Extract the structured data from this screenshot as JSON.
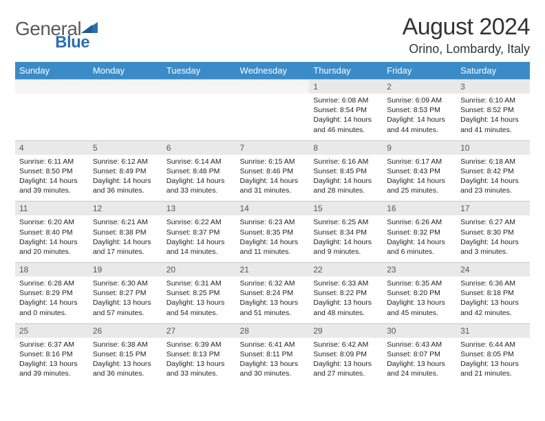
{
  "logo": {
    "text1": "General",
    "text2": "Blue"
  },
  "title": "August 2024",
  "location": "Orino, Lombardy, Italy",
  "styling": {
    "header_bg": "#3b8bc8",
    "header_fg": "#ffffff",
    "daynum_bg": "#e9e9e9",
    "daynum_fg": "#555555",
    "border_color": "#c9c9c9",
    "body_fg": "#222222",
    "logo_gray": "#5a5a5a",
    "logo_blue": "#2b6fb0",
    "title_fontsize": 34,
    "location_fontsize": 18,
    "dayhead_fontsize": 13,
    "daynum_fontsize": 12,
    "detail_fontsize": 10.5
  },
  "weekdays": [
    "Sunday",
    "Monday",
    "Tuesday",
    "Wednesday",
    "Thursday",
    "Friday",
    "Saturday"
  ],
  "weeks": [
    {
      "nums": [
        "",
        "",
        "",
        "",
        "1",
        "2",
        "3"
      ],
      "cells": [
        null,
        null,
        null,
        null,
        {
          "sunrise": "6:08 AM",
          "sunset": "8:54 PM",
          "dayh": 14,
          "daym": 46
        },
        {
          "sunrise": "6:09 AM",
          "sunset": "8:53 PM",
          "dayh": 14,
          "daym": 44
        },
        {
          "sunrise": "6:10 AM",
          "sunset": "8:52 PM",
          "dayh": 14,
          "daym": 41
        }
      ]
    },
    {
      "nums": [
        "4",
        "5",
        "6",
        "7",
        "8",
        "9",
        "10"
      ],
      "cells": [
        {
          "sunrise": "6:11 AM",
          "sunset": "8:50 PM",
          "dayh": 14,
          "daym": 39
        },
        {
          "sunrise": "6:12 AM",
          "sunset": "8:49 PM",
          "dayh": 14,
          "daym": 36
        },
        {
          "sunrise": "6:14 AM",
          "sunset": "8:48 PM",
          "dayh": 14,
          "daym": 33
        },
        {
          "sunrise": "6:15 AM",
          "sunset": "8:46 PM",
          "dayh": 14,
          "daym": 31
        },
        {
          "sunrise": "6:16 AM",
          "sunset": "8:45 PM",
          "dayh": 14,
          "daym": 28
        },
        {
          "sunrise": "6:17 AM",
          "sunset": "8:43 PM",
          "dayh": 14,
          "daym": 25
        },
        {
          "sunrise": "6:18 AM",
          "sunset": "8:42 PM",
          "dayh": 14,
          "daym": 23
        }
      ]
    },
    {
      "nums": [
        "11",
        "12",
        "13",
        "14",
        "15",
        "16",
        "17"
      ],
      "cells": [
        {
          "sunrise": "6:20 AM",
          "sunset": "8:40 PM",
          "dayh": 14,
          "daym": 20
        },
        {
          "sunrise": "6:21 AM",
          "sunset": "8:38 PM",
          "dayh": 14,
          "daym": 17
        },
        {
          "sunrise": "6:22 AM",
          "sunset": "8:37 PM",
          "dayh": 14,
          "daym": 14
        },
        {
          "sunrise": "6:23 AM",
          "sunset": "8:35 PM",
          "dayh": 14,
          "daym": 11
        },
        {
          "sunrise": "6:25 AM",
          "sunset": "8:34 PM",
          "dayh": 14,
          "daym": 9
        },
        {
          "sunrise": "6:26 AM",
          "sunset": "8:32 PM",
          "dayh": 14,
          "daym": 6
        },
        {
          "sunrise": "6:27 AM",
          "sunset": "8:30 PM",
          "dayh": 14,
          "daym": 3
        }
      ]
    },
    {
      "nums": [
        "18",
        "19",
        "20",
        "21",
        "22",
        "23",
        "24"
      ],
      "cells": [
        {
          "sunrise": "6:28 AM",
          "sunset": "8:29 PM",
          "dayh": 14,
          "daym": 0
        },
        {
          "sunrise": "6:30 AM",
          "sunset": "8:27 PM",
          "dayh": 13,
          "daym": 57
        },
        {
          "sunrise": "6:31 AM",
          "sunset": "8:25 PM",
          "dayh": 13,
          "daym": 54
        },
        {
          "sunrise": "6:32 AM",
          "sunset": "8:24 PM",
          "dayh": 13,
          "daym": 51
        },
        {
          "sunrise": "6:33 AM",
          "sunset": "8:22 PM",
          "dayh": 13,
          "daym": 48
        },
        {
          "sunrise": "6:35 AM",
          "sunset": "8:20 PM",
          "dayh": 13,
          "daym": 45
        },
        {
          "sunrise": "6:36 AM",
          "sunset": "8:18 PM",
          "dayh": 13,
          "daym": 42
        }
      ]
    },
    {
      "nums": [
        "25",
        "26",
        "27",
        "28",
        "29",
        "30",
        "31"
      ],
      "cells": [
        {
          "sunrise": "6:37 AM",
          "sunset": "8:16 PM",
          "dayh": 13,
          "daym": 39
        },
        {
          "sunrise": "6:38 AM",
          "sunset": "8:15 PM",
          "dayh": 13,
          "daym": 36
        },
        {
          "sunrise": "6:39 AM",
          "sunset": "8:13 PM",
          "dayh": 13,
          "daym": 33
        },
        {
          "sunrise": "6:41 AM",
          "sunset": "8:11 PM",
          "dayh": 13,
          "daym": 30
        },
        {
          "sunrise": "6:42 AM",
          "sunset": "8:09 PM",
          "dayh": 13,
          "daym": 27
        },
        {
          "sunrise": "6:43 AM",
          "sunset": "8:07 PM",
          "dayh": 13,
          "daym": 24
        },
        {
          "sunrise": "6:44 AM",
          "sunset": "8:05 PM",
          "dayh": 13,
          "daym": 21
        }
      ]
    }
  ]
}
